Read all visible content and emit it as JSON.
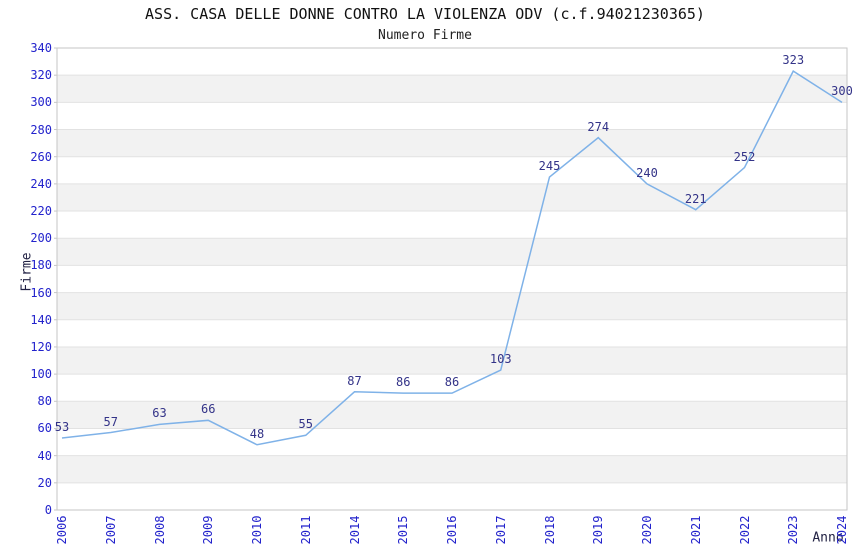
{
  "chart_data": {
    "type": "line",
    "title": "ASS. CASA DELLE DONNE CONTRO LA VIOLENZA ODV (c.f.94021230365)",
    "subtitle": "Numero Firme",
    "xlabel": "Anno",
    "ylabel": "Firme",
    "categories": [
      "2006",
      "2007",
      "2008",
      "2009",
      "2010",
      "2011",
      "2014",
      "2015",
      "2016",
      "2017",
      "2018",
      "2019",
      "2020",
      "2021",
      "2022",
      "2023",
      "2024"
    ],
    "values": [
      53,
      57,
      63,
      66,
      48,
      55,
      87,
      86,
      86,
      103,
      245,
      274,
      240,
      221,
      252,
      323,
      300
    ],
    "ylim": [
      0,
      340
    ],
    "ytick_step": 20,
    "grid": true,
    "legend_position": "none",
    "background_bands": "alternating",
    "colors": {
      "line": "#7fb2e8",
      "tick_label": "#2323cc",
      "data_label": "#333388",
      "band_gray": "#f2f2f2",
      "band_white": "#ffffff",
      "gridline": "#e2e2e2",
      "plot_border": "#c6c6c6",
      "title": "#111111",
      "axis_title": "#222244"
    }
  }
}
